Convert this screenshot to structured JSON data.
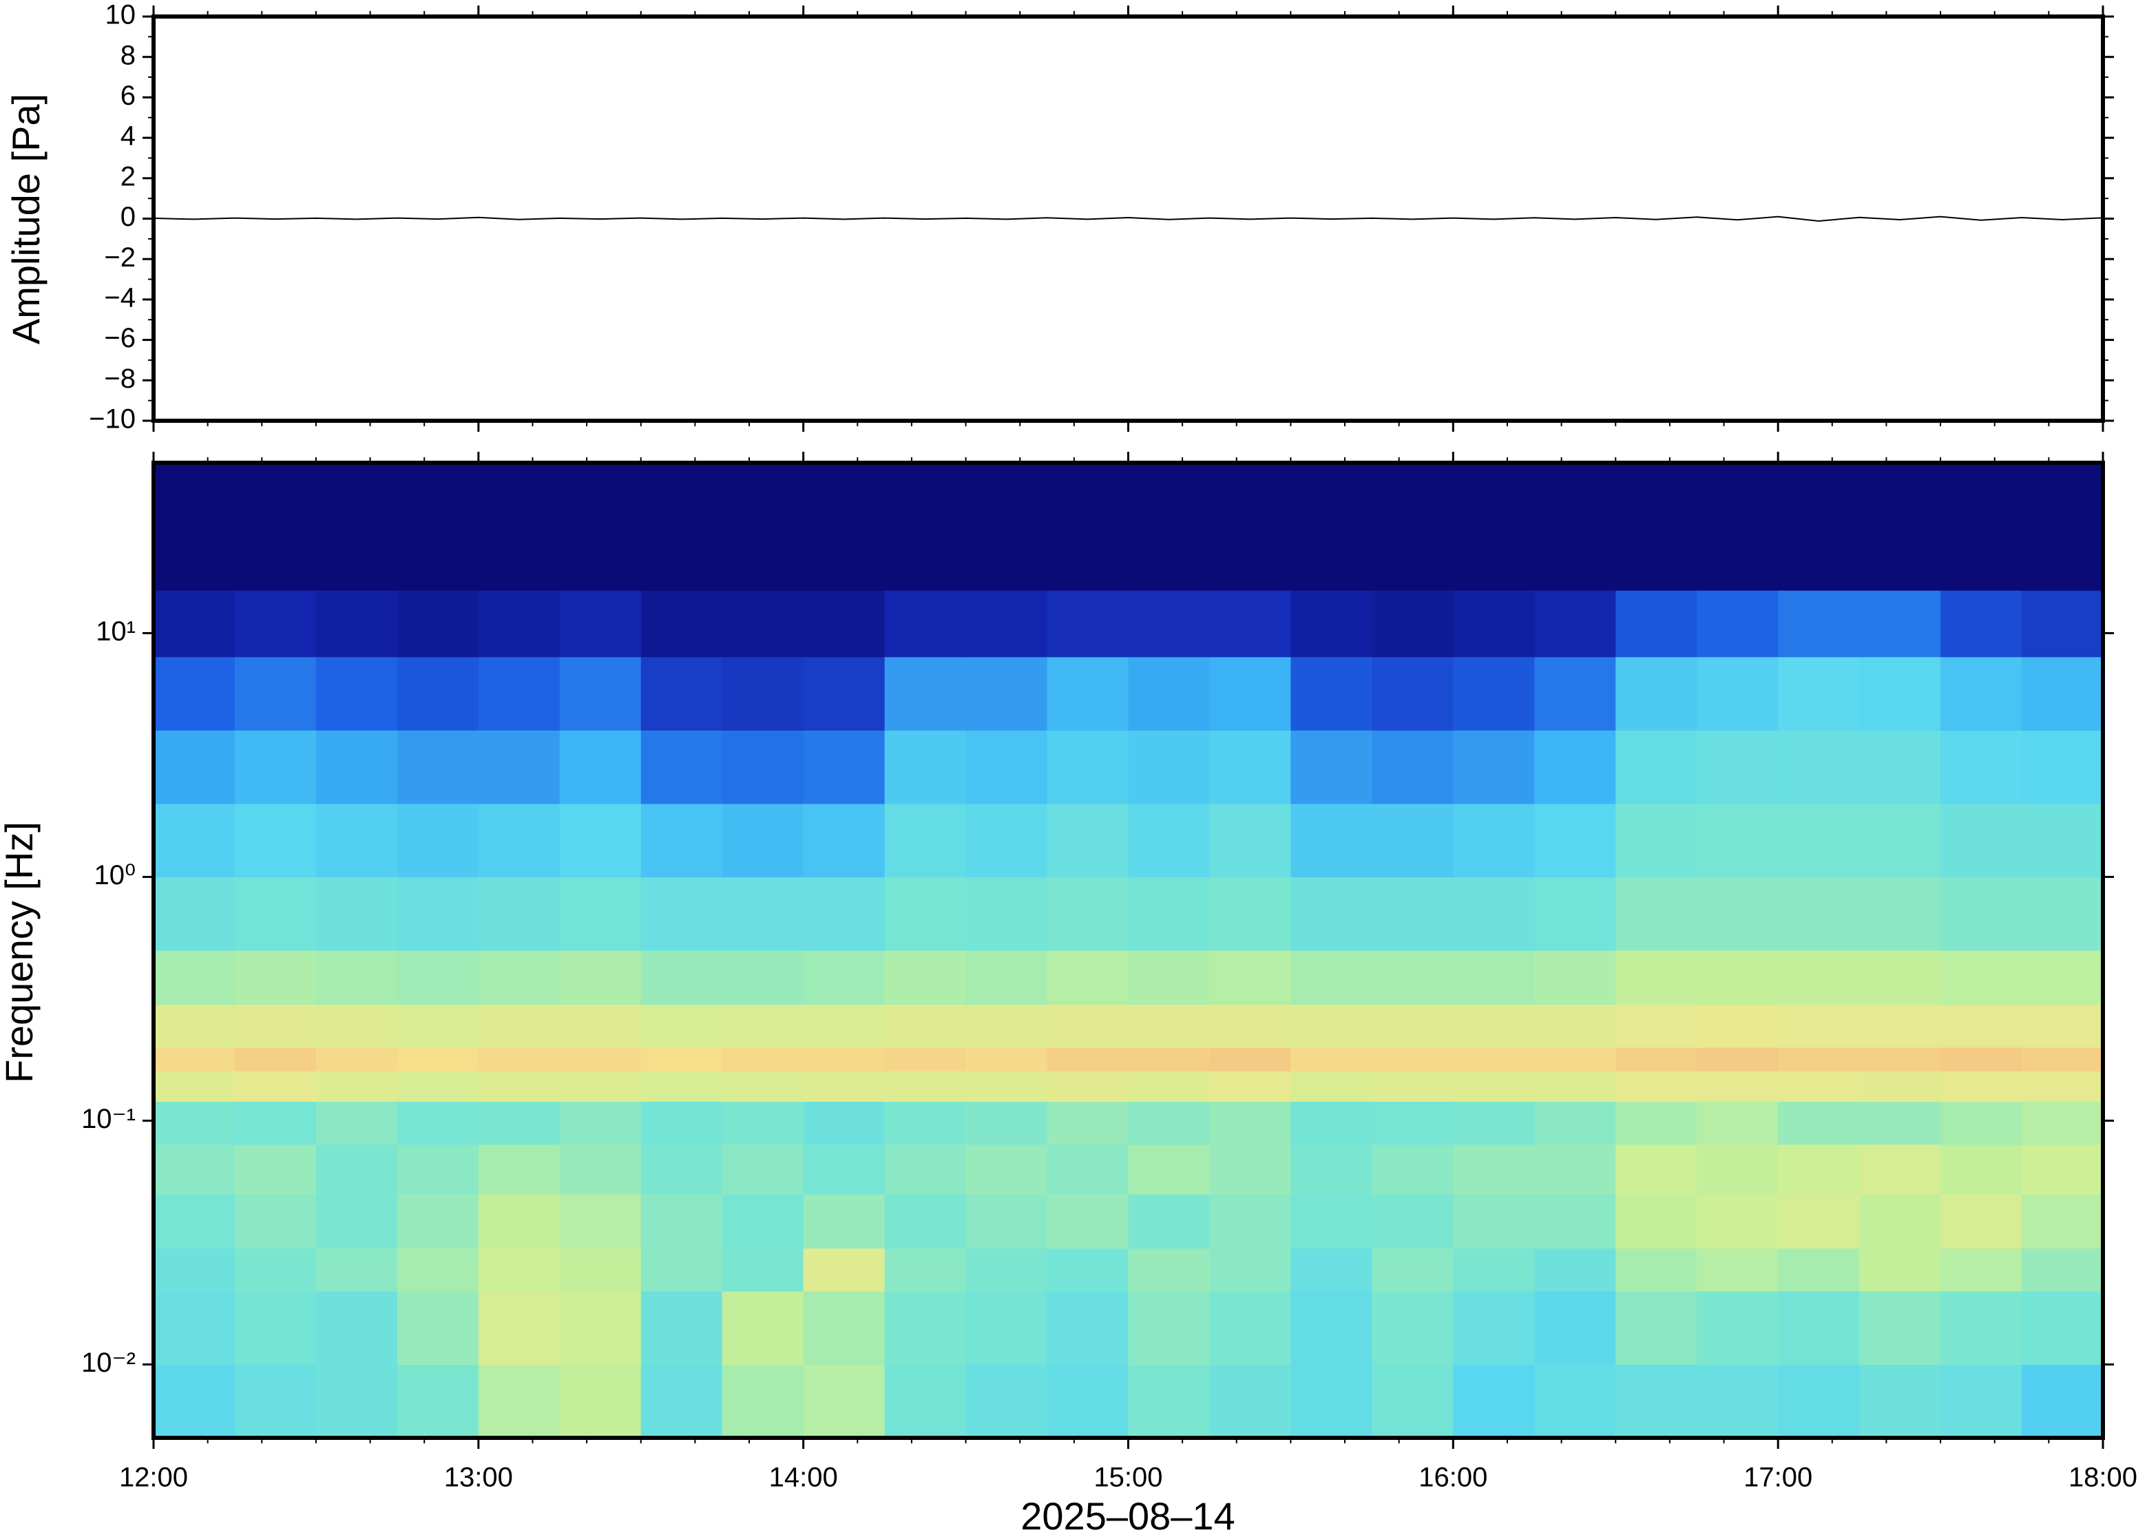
{
  "chart_data": [
    {
      "type": "line",
      "ylabel": "Amplitude [Pa]",
      "xlim": [
        12,
        18
      ],
      "xticks": [
        12,
        13,
        14,
        15,
        16,
        17,
        18
      ],
      "ylim": [
        -10,
        10
      ],
      "yticks": [
        {
          "value": -10,
          "label": "−10"
        },
        {
          "value": -8,
          "label": "−8"
        },
        {
          "value": -6,
          "label": "−6"
        },
        {
          "value": -4,
          "label": "−4"
        },
        {
          "value": -2,
          "label": "−2"
        },
        0,
        2,
        4,
        6,
        8,
        10
      ],
      "series": [
        {
          "color": "#000000",
          "x": [
            12,
            12.125,
            12.25,
            12.375,
            12.5,
            12.625,
            12.75,
            12.875,
            13,
            13.125,
            13.25,
            13.375,
            13.5,
            13.625,
            13.75,
            13.875,
            14,
            14.125,
            14.25,
            14.375,
            14.5,
            14.625,
            14.75,
            14.875,
            15,
            15.125,
            15.25,
            15.375,
            15.5,
            15.625,
            15.75,
            15.875,
            16,
            16.125,
            16.25,
            16.375,
            16.5,
            16.625,
            16.75,
            16.875,
            17,
            17.125,
            17.25,
            17.375,
            17.5,
            17.625,
            17.75,
            17.875,
            18
          ],
          "values": [
            0.02,
            -0.03,
            0.03,
            -0.02,
            0.02,
            -0.03,
            0.03,
            -0.02,
            0.06,
            -0.04,
            0.02,
            -0.02,
            0.03,
            -0.03,
            0.02,
            -0.02,
            0.03,
            -0.03,
            0.03,
            -0.02,
            0.02,
            -0.03,
            0.04,
            -0.03,
            0.05,
            -0.04,
            0.03,
            -0.03,
            0.03,
            -0.02,
            0.02,
            -0.03,
            0.03,
            -0.03,
            0.04,
            -0.03,
            0.05,
            -0.04,
            0.08,
            -0.06,
            0.1,
            -0.12,
            0.06,
            -0.05,
            0.1,
            -0.08,
            0.05,
            -0.05,
            0.04
          ]
        }
      ]
    },
    {
      "type": "heatmap",
      "ylabel": "Frequency [Hz]",
      "xlabel": "2025–08–14",
      "xlim": [
        12,
        18
      ],
      "xticks": [
        {
          "value": 12,
          "label": "12:00"
        },
        {
          "value": 13,
          "label": "13:00"
        },
        {
          "value": 14,
          "label": "14:00"
        },
        {
          "value": 15,
          "label": "15:00"
        },
        {
          "value": 16,
          "label": "16:00"
        },
        {
          "value": 17,
          "label": "17:00"
        },
        {
          "value": 18,
          "label": "18:00"
        }
      ],
      "ylim": [
        0.005,
        50
      ],
      "ylog": true,
      "yticks": [
        {
          "value": 0.01,
          "label": "10⁻²"
        },
        {
          "value": 0.1,
          "label": "10⁻¹"
        },
        {
          "value": 1,
          "label": "10⁰"
        },
        {
          "value": 10,
          "label": "10¹"
        }
      ],
      "time_edges": [
        12,
        12.25,
        12.5,
        12.75,
        13,
        13.25,
        13.5,
        13.75,
        14,
        14.25,
        14.5,
        14.75,
        15,
        15.25,
        15.5,
        15.75,
        16,
        16.25,
        16.5,
        16.75,
        17,
        17.25,
        17.5,
        17.75,
        18
      ],
      "freq_edges": [
        0.005,
        0.01,
        0.02,
        0.03,
        0.05,
        0.08,
        0.12,
        0.16,
        0.2,
        0.3,
        0.5,
        1,
        2,
        4,
        8,
        15,
        50
      ],
      "zlim": [
        0,
        1
      ],
      "colormap": [
        "#0b0b78",
        "#1428b4",
        "#1e64e6",
        "#3cb4f5",
        "#5ad7f0",
        "#78e6d2",
        "#c8f096",
        "#f5e68c",
        "#f5aa7d",
        "#e6645a"
      ],
      "z": [
        [
          0.46,
          0.5,
          0.52,
          0.56,
          0.64,
          0.66,
          0.5,
          0.62,
          0.64,
          0.54,
          0.5,
          0.48,
          0.56,
          0.52,
          0.48,
          0.54,
          0.44,
          0.48,
          0.5,
          0.5,
          0.48,
          0.52,
          0.5,
          0.42
        ],
        [
          0.5,
          0.54,
          0.52,
          0.6,
          0.7,
          0.68,
          0.52,
          0.66,
          0.62,
          0.56,
          0.54,
          0.5,
          0.58,
          0.56,
          0.48,
          0.56,
          0.5,
          0.46,
          0.58,
          0.56,
          0.54,
          0.58,
          0.56,
          0.54
        ],
        [
          0.52,
          0.56,
          0.58,
          0.62,
          0.68,
          0.66,
          0.58,
          0.56,
          0.72,
          0.58,
          0.56,
          0.54,
          0.6,
          0.58,
          0.5,
          0.58,
          0.56,
          0.52,
          0.62,
          0.64,
          0.62,
          0.66,
          0.64,
          0.6
        ],
        [
          0.55,
          0.58,
          0.56,
          0.6,
          0.66,
          0.64,
          0.58,
          0.55,
          0.6,
          0.56,
          0.58,
          0.6,
          0.56,
          0.58,
          0.55,
          0.56,
          0.58,
          0.58,
          0.66,
          0.68,
          0.7,
          0.66,
          0.7,
          0.64
        ],
        [
          0.58,
          0.6,
          0.56,
          0.58,
          0.62,
          0.6,
          0.56,
          0.58,
          0.55,
          0.58,
          0.6,
          0.58,
          0.62,
          0.6,
          0.56,
          0.58,
          0.6,
          0.6,
          0.68,
          0.66,
          0.68,
          0.7,
          0.66,
          0.68
        ],
        [
          0.56,
          0.55,
          0.58,
          0.55,
          0.56,
          0.58,
          0.54,
          0.56,
          0.52,
          0.56,
          0.57,
          0.6,
          0.58,
          0.6,
          0.54,
          0.55,
          0.56,
          0.58,
          0.62,
          0.64,
          0.6,
          0.6,
          0.62,
          0.64
        ],
        [
          0.72,
          0.74,
          0.72,
          0.7,
          0.72,
          0.72,
          0.7,
          0.71,
          0.72,
          0.72,
          0.72,
          0.73,
          0.72,
          0.74,
          0.71,
          0.72,
          0.72,
          0.72,
          0.74,
          0.74,
          0.74,
          0.73,
          0.74,
          0.74
        ],
        [
          0.8,
          0.82,
          0.8,
          0.79,
          0.8,
          0.8,
          0.79,
          0.8,
          0.8,
          0.81,
          0.8,
          0.82,
          0.82,
          0.83,
          0.8,
          0.8,
          0.8,
          0.8,
          0.82,
          0.83,
          0.82,
          0.82,
          0.83,
          0.82
        ],
        [
          0.72,
          0.73,
          0.72,
          0.71,
          0.72,
          0.72,
          0.7,
          0.71,
          0.71,
          0.72,
          0.72,
          0.73,
          0.73,
          0.73,
          0.72,
          0.72,
          0.72,
          0.72,
          0.74,
          0.75,
          0.74,
          0.74,
          0.74,
          0.74
        ],
        [
          0.62,
          0.63,
          0.62,
          0.61,
          0.62,
          0.63,
          0.6,
          0.6,
          0.61,
          0.63,
          0.62,
          0.64,
          0.63,
          0.64,
          0.62,
          0.62,
          0.62,
          0.63,
          0.66,
          0.66,
          0.66,
          0.66,
          0.65,
          0.65
        ],
        [
          0.52,
          0.53,
          0.52,
          0.5,
          0.52,
          0.53,
          0.5,
          0.5,
          0.5,
          0.55,
          0.54,
          0.56,
          0.54,
          0.56,
          0.52,
          0.52,
          0.52,
          0.53,
          0.58,
          0.58,
          0.58,
          0.58,
          0.57,
          0.57
        ],
        [
          0.42,
          0.44,
          0.42,
          0.4,
          0.42,
          0.44,
          0.38,
          0.36,
          0.38,
          0.48,
          0.46,
          0.5,
          0.46,
          0.5,
          0.4,
          0.4,
          0.42,
          0.44,
          0.54,
          0.55,
          0.55,
          0.55,
          0.52,
          0.52
        ],
        [
          0.32,
          0.35,
          0.32,
          0.3,
          0.3,
          0.34,
          0.25,
          0.24,
          0.25,
          0.4,
          0.38,
          0.42,
          0.4,
          0.42,
          0.3,
          0.28,
          0.3,
          0.34,
          0.48,
          0.5,
          0.5,
          0.5,
          0.45,
          0.44
        ],
        [
          0.22,
          0.25,
          0.22,
          0.2,
          0.22,
          0.25,
          0.15,
          0.14,
          0.15,
          0.3,
          0.3,
          0.35,
          0.32,
          0.33,
          0.2,
          0.18,
          0.2,
          0.25,
          0.4,
          0.42,
          0.45,
          0.44,
          0.38,
          0.35
        ],
        [
          0.08,
          0.1,
          0.08,
          0.06,
          0.08,
          0.1,
          0.05,
          0.05,
          0.05,
          0.1,
          0.1,
          0.12,
          0.12,
          0.12,
          0.08,
          0.06,
          0.08,
          0.1,
          0.2,
          0.22,
          0.25,
          0.25,
          0.18,
          0.15
        ],
        [
          0,
          0,
          0,
          0,
          0,
          0,
          0,
          0,
          0,
          0,
          0,
          0,
          0,
          0,
          0,
          0,
          0,
          0,
          0,
          0,
          0,
          0,
          0,
          0
        ]
      ]
    }
  ]
}
